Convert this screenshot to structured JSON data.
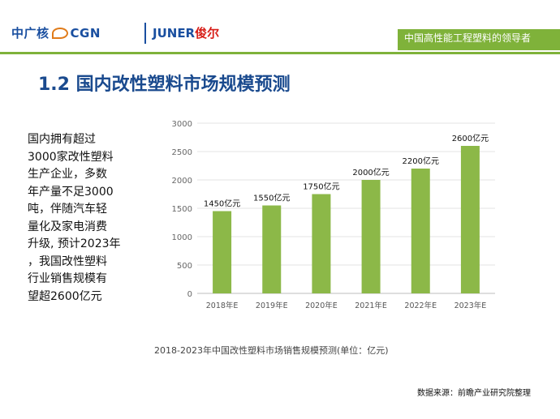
{
  "header": {
    "logo_cgn": "中广核",
    "logo_cgn_tail": "CGN",
    "logo_juner": "JUNER",
    "logo_juner_cn": "俊尔",
    "tagline": "中国高性能工程塑料的领导者"
  },
  "title": "1.2  国内改性塑料市场规模预测",
  "body_lines": [
    "国内拥有超过",
    "3000家改性塑料",
    "生产企业，多数",
    "年产量不足3000",
    "吨，伴随汽车轻",
    "量化及家电消费",
    "升级, 预计2023年",
    "，我国改性塑料",
    "行业销售规模有",
    "望超2600亿元"
  ],
  "chart_data": {
    "type": "bar",
    "categories": [
      "2018年E",
      "2019年E",
      "2020年E",
      "2021年E",
      "2022年E",
      "2023年E"
    ],
    "values": [
      1450,
      1550,
      1750,
      2000,
      2200,
      2600
    ],
    "data_labels": [
      "1450亿元",
      "1550亿元",
      "1750亿元",
      "2000亿元",
      "2200亿元",
      "2600亿元"
    ],
    "yticks": [
      "0",
      "500",
      "1000",
      "1500",
      "2000",
      "2500",
      "3000"
    ],
    "ylim": [
      0,
      3000
    ],
    "bar_color": "#8cb848",
    "grid": true,
    "title": "2018-2023年中国改性塑料市场销售规模预测(单位：亿元)"
  },
  "source": "数据来源：前瞻产业研究院整理"
}
